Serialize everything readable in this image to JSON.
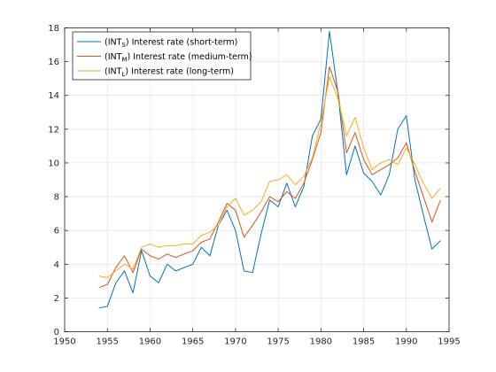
{
  "chart_data": {
    "type": "line",
    "title": "",
    "xlabel": "",
    "ylabel": "",
    "xlim": [
      1950,
      1995
    ],
    "ylim": [
      0,
      18
    ],
    "xticks": [
      1950,
      1955,
      1960,
      1965,
      1970,
      1975,
      1980,
      1985,
      1990,
      1995
    ],
    "yticks": [
      0,
      2,
      4,
      6,
      8,
      10,
      12,
      14,
      16,
      18
    ],
    "grid": true,
    "legend_position": "top-left",
    "x": [
      1954,
      1955,
      1956,
      1957,
      1958,
      1959,
      1960,
      1961,
      1962,
      1963,
      1964,
      1965,
      1966,
      1967,
      1968,
      1969,
      1970,
      1971,
      1972,
      1973,
      1974,
      1975,
      1976,
      1977,
      1978,
      1979,
      1980,
      1981,
      1982,
      1983,
      1984,
      1985,
      1986,
      1987,
      1988,
      1989,
      1990,
      1991,
      1992,
      1993,
      1994
    ],
    "series": [
      {
        "legend_prefix": "(INT",
        "legend_sub": "S",
        "legend_suffix": ") Interest rate (short-term)",
        "color": "#0072BD",
        "values": [
          1.4,
          1.5,
          2.9,
          3.6,
          2.3,
          4.8,
          3.3,
          2.9,
          4.0,
          3.6,
          3.8,
          4.0,
          5.0,
          4.5,
          6.3,
          7.2,
          6.0,
          3.6,
          3.5,
          5.8,
          7.8,
          7.4,
          8.8,
          7.4,
          8.6,
          11.6,
          12.6,
          17.8,
          14.1,
          9.3,
          11.0,
          9.4,
          8.9,
          8.1,
          9.3,
          12.0,
          12.8,
          9.0,
          6.9,
          4.9,
          5.4
        ]
      },
      {
        "legend_prefix": "(INT",
        "legend_sub": "M",
        "legend_suffix": ") Interest rate (medium-term)",
        "color": "#D95319",
        "values": [
          2.6,
          2.8,
          3.8,
          4.5,
          3.5,
          4.9,
          4.5,
          4.3,
          4.6,
          4.4,
          4.6,
          4.8,
          5.3,
          5.5,
          6.5,
          7.6,
          7.2,
          5.6,
          6.3,
          7.1,
          8.0,
          7.7,
          8.3,
          7.9,
          8.8,
          10.2,
          11.8,
          15.7,
          14.2,
          10.6,
          11.8,
          10.2,
          9.3,
          9.6,
          9.9,
          10.3,
          11.2,
          9.5,
          8.0,
          6.5,
          7.8
        ]
      },
      {
        "legend_prefix": "(INT",
        "legend_sub": "L",
        "legend_suffix": ") Interest rate (long-term)",
        "color": "#EDB120",
        "values": [
          3.3,
          3.2,
          3.6,
          4.0,
          3.7,
          5.0,
          5.2,
          5.0,
          5.1,
          5.1,
          5.2,
          5.2,
          5.7,
          5.9,
          6.3,
          7.4,
          7.9,
          6.9,
          7.2,
          7.7,
          8.9,
          9.0,
          9.3,
          8.7,
          9.2,
          10.3,
          12.4,
          15.1,
          13.8,
          11.6,
          12.7,
          10.9,
          9.6,
          10.0,
          10.2,
          9.9,
          10.9,
          9.9,
          8.8,
          7.9,
          8.5
        ]
      }
    ]
  }
}
